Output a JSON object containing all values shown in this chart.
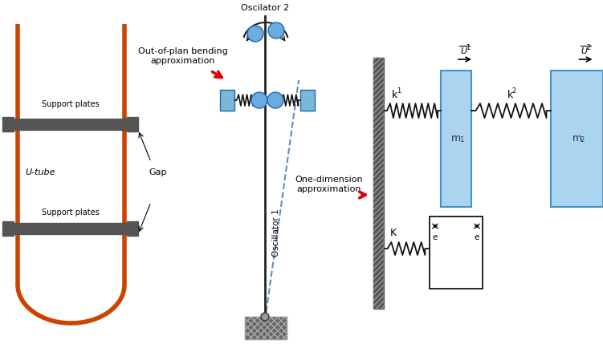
{
  "bg_color": "#ffffff",
  "utube_color": "#cc4400",
  "support_plate_color": "#555555",
  "mass_color": "#aad4f0",
  "mass_edge_color": "#4a90c0",
  "spring_color": "#111111",
  "osc2_label": "Oscilator 2",
  "osc1_label": "Oscillator 1",
  "out_of_plan_text": "Out-of-plan bending\napproximation",
  "one_dim_text": "One-dimension\napproximation",
  "utube_text": "U-tube",
  "support_text": "Support plates",
  "gap_text": "Gap",
  "k1_text": "k",
  "k2_text": "k",
  "K_text": "K",
  "m1_text": "m",
  "m2_text": "m",
  "U1_text": "U",
  "U2_text": "U",
  "e_text": "e",
  "arrow_color": "#dd0000",
  "blue_ball_color": "#6aabe0",
  "blue_rect_color": "#7ab8d9"
}
